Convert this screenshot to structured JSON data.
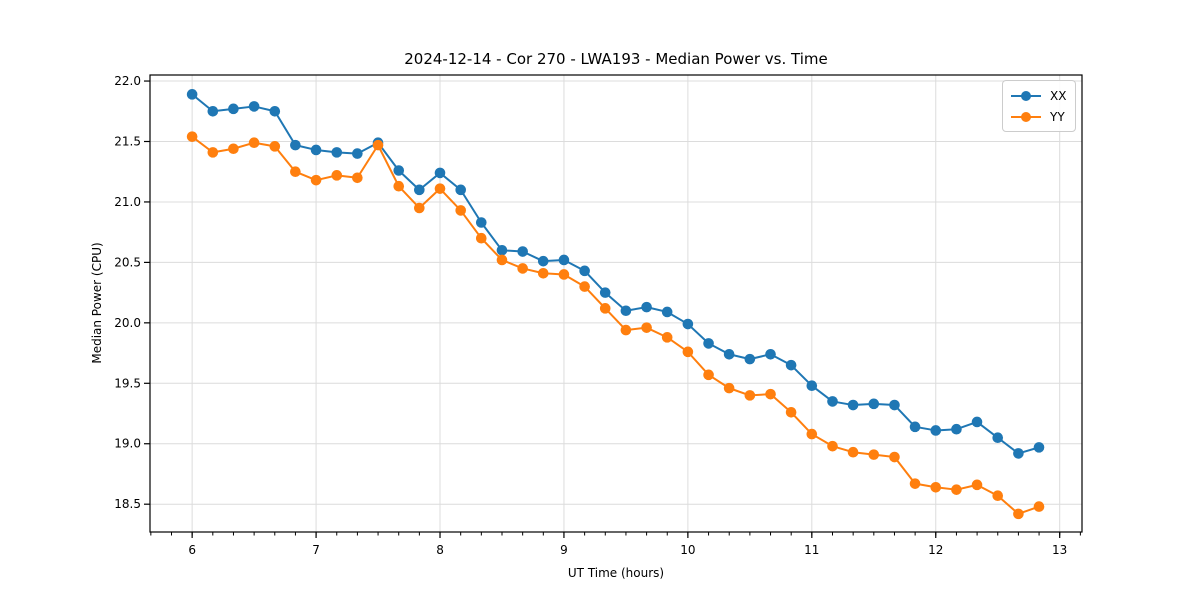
{
  "page": {
    "background": "#ffffff"
  },
  "chart_data": {
    "type": "line",
    "title": "2024-12-14 - Cor 270 - LWA193 - Median Power vs. Time",
    "xlabel": "UT Time (hours)",
    "ylabel": "Median Power (CPU)",
    "xlim": [
      5.66,
      13.18
    ],
    "ylim": [
      18.27,
      22.05
    ],
    "x_ticks": [
      6,
      7,
      8,
      9,
      10,
      11,
      12,
      13
    ],
    "x_tick_labels": [
      "6",
      "7",
      "8",
      "9",
      "10",
      "11",
      "12",
      "13"
    ],
    "x_minor_step": 0.16667,
    "y_ticks": [
      18.5,
      19.0,
      19.5,
      20.0,
      20.5,
      21.0,
      21.5,
      22.0
    ],
    "y_tick_labels": [
      "18.5",
      "19.0",
      "19.5",
      "20.0",
      "20.5",
      "21.0",
      "21.5",
      "22.0"
    ],
    "grid": true,
    "grid_color": "#dcdcdc",
    "legend_position": "upper right",
    "marker": "circle",
    "x": [
      6.0,
      6.167,
      6.333,
      6.5,
      6.667,
      6.833,
      7.0,
      7.167,
      7.333,
      7.5,
      7.667,
      7.833,
      8.0,
      8.167,
      8.333,
      8.5,
      8.667,
      8.833,
      9.0,
      9.167,
      9.333,
      9.5,
      9.667,
      9.833,
      10.0,
      10.167,
      10.333,
      10.5,
      10.667,
      10.833,
      11.0,
      11.167,
      11.333,
      11.5,
      11.667,
      11.833,
      12.0,
      12.167,
      12.333,
      12.5,
      12.667,
      12.833
    ],
    "series": [
      {
        "name": "XX",
        "color": "#1f77b4",
        "values": [
          21.89,
          21.75,
          21.77,
          21.79,
          21.75,
          21.47,
          21.43,
          21.41,
          21.4,
          21.49,
          21.26,
          21.1,
          21.24,
          21.1,
          20.83,
          20.6,
          20.59,
          20.51,
          20.52,
          20.43,
          20.25,
          20.1,
          20.13,
          20.09,
          19.99,
          19.83,
          19.74,
          19.7,
          19.74,
          19.65,
          19.48,
          19.35,
          19.32,
          19.33,
          19.32,
          19.14,
          19.11,
          19.12,
          19.18,
          19.05,
          18.92,
          18.97
        ]
      },
      {
        "name": "YY",
        "color": "#ff7f0e",
        "values": [
          21.54,
          21.41,
          21.44,
          21.49,
          21.46,
          21.25,
          21.18,
          21.22,
          21.2,
          21.47,
          21.13,
          20.95,
          21.11,
          20.93,
          20.7,
          20.52,
          20.45,
          20.41,
          20.4,
          20.3,
          20.12,
          19.94,
          19.96,
          19.88,
          19.76,
          19.57,
          19.46,
          19.4,
          19.41,
          19.26,
          19.08,
          18.98,
          18.93,
          18.91,
          18.89,
          18.67,
          18.64,
          18.62,
          18.66,
          18.57,
          18.42,
          18.48
        ]
      }
    ]
  }
}
